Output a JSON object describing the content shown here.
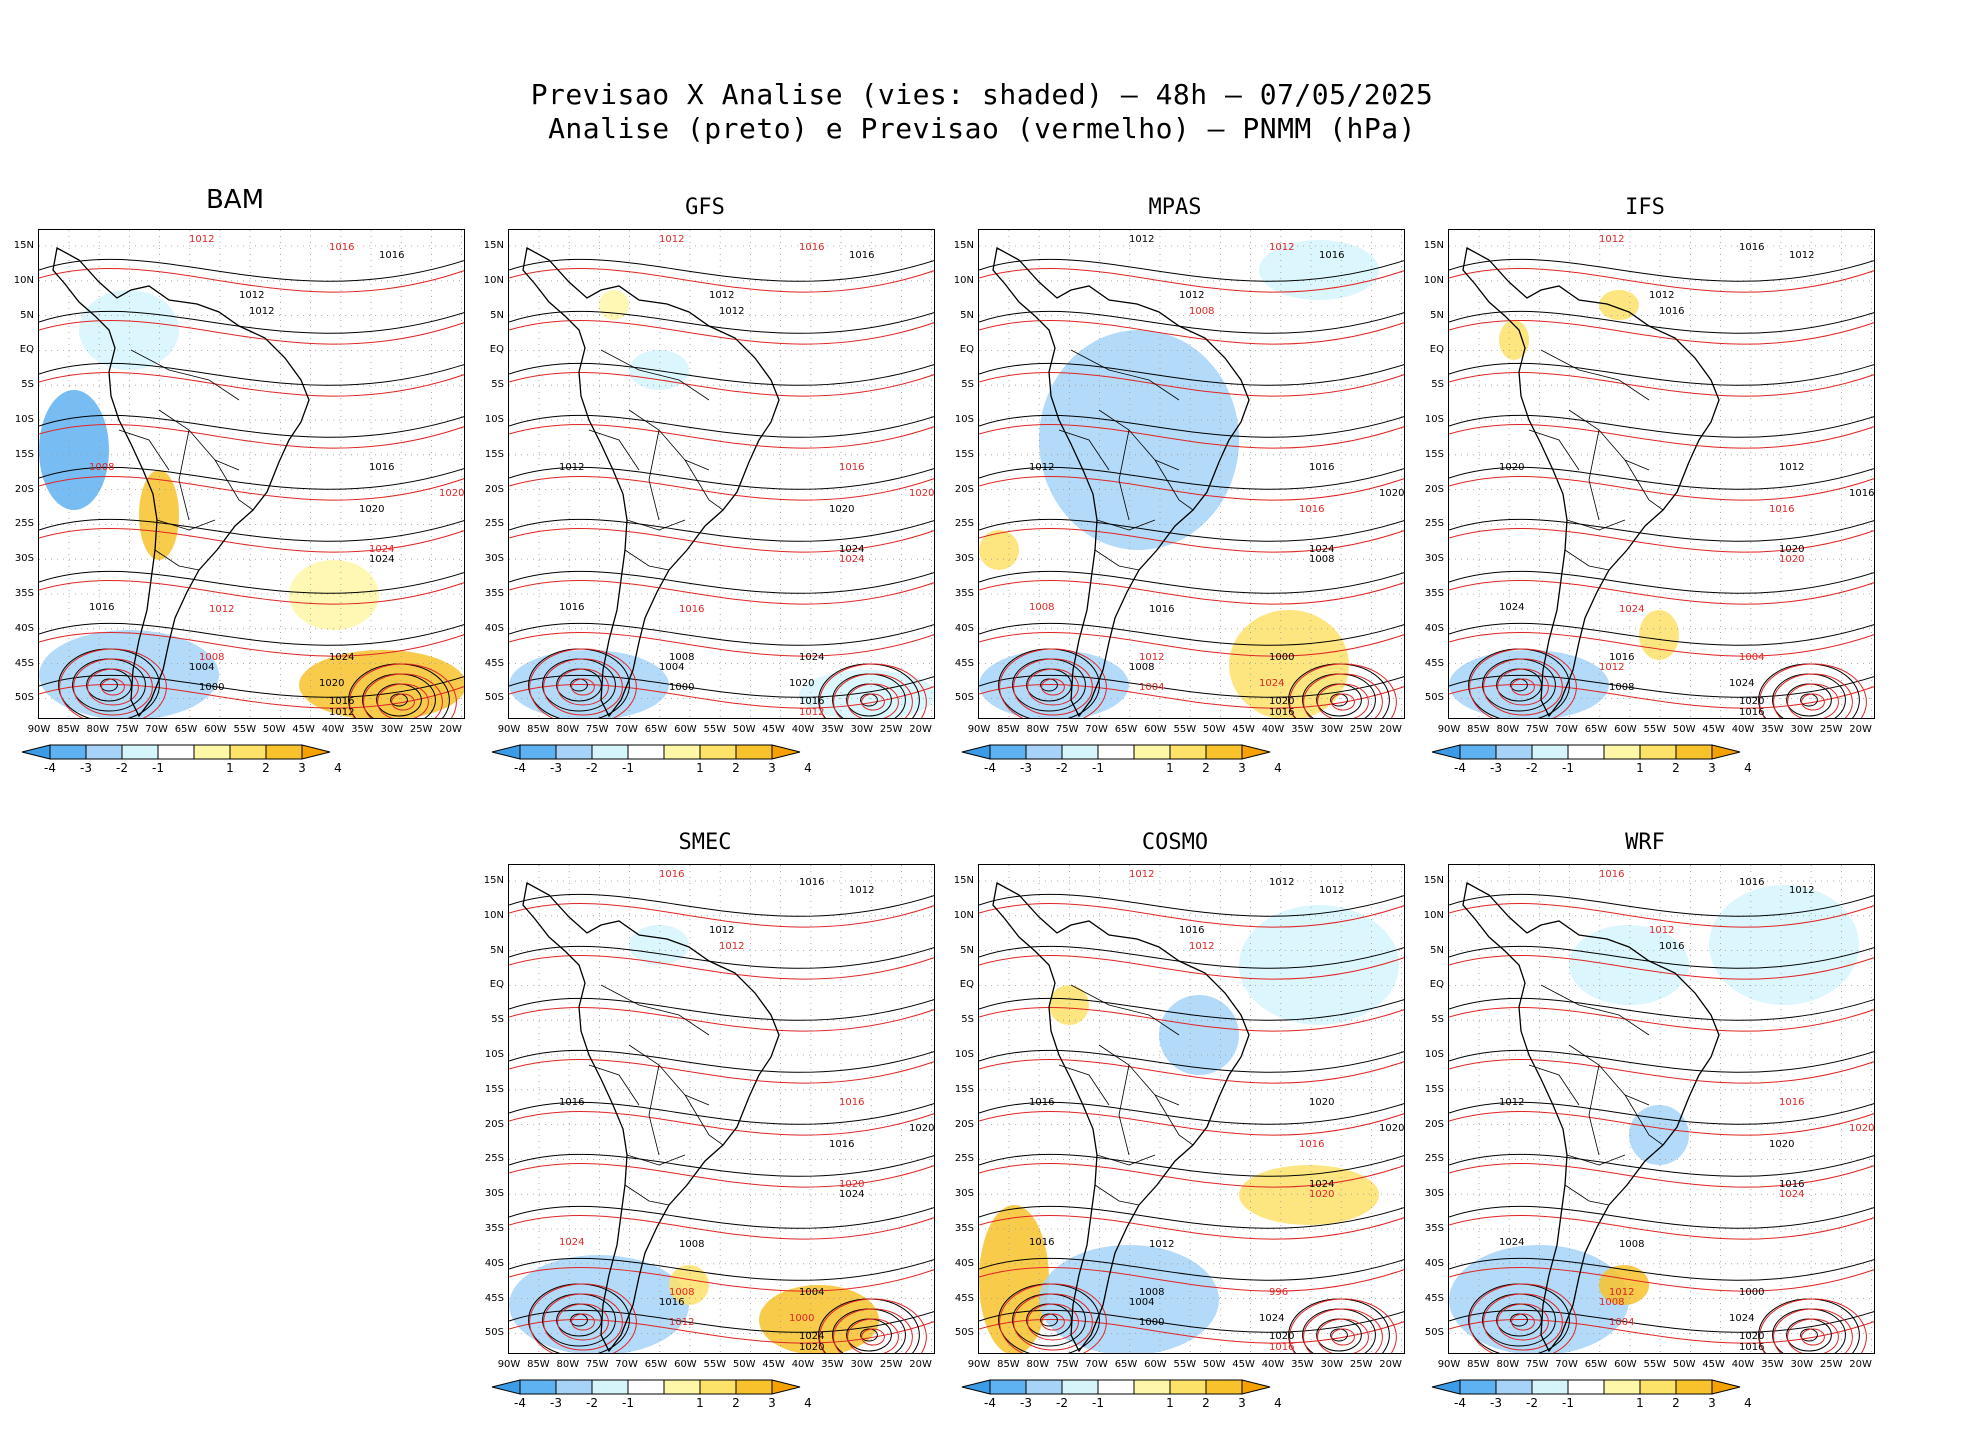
{
  "title_line1": "Previsao X Analise (vies: shaded) – 48h – 07/05/2025",
  "title_line2": "Analise (preto) e Previsao (vermelho) – PNMM (hPa)",
  "lat_labels": [
    "15N",
    "10N",
    "5N",
    "EQ",
    "5S",
    "10S",
    "15S",
    "20S",
    "25S",
    "30S",
    "35S",
    "40S",
    "45S",
    "50S"
  ],
  "lon_labels": [
    "90W",
    "85W",
    "80W",
    "75W",
    "70W",
    "65W",
    "60W",
    "55W",
    "50W",
    "45W",
    "40W",
    "35W",
    "30W",
    "25W",
    "20W"
  ],
  "colorbar_labels": [
    "-4",
    "-3",
    "-2",
    "-1",
    "1",
    "2",
    "3",
    "4"
  ],
  "colorbar_colors": [
    "#3c9be6",
    "#5fb2f2",
    "#a6d3f7",
    "#d5f5fb",
    "#ffffff",
    "#fff7a8",
    "#fde26a",
    "#f7c22c",
    "#f5a200"
  ],
  "analysis_color": "#000000",
  "forecast_color": "#e02424",
  "panels": [
    {
      "name": "BAM",
      "contours": [
        {
          "t": "1012",
          "c": "r"
        },
        {
          "t": "1016",
          "c": "r"
        },
        {
          "t": "1016",
          "c": "k"
        },
        {
          "t": "1012",
          "c": "k"
        },
        {
          "t": "1012",
          "c": "k"
        },
        {
          "t": "1008",
          "c": "r"
        },
        {
          "t": "1016",
          "c": "k"
        },
        {
          "t": "1020",
          "c": "k"
        },
        {
          "t": "1020",
          "c": "r"
        },
        {
          "t": "1024",
          "c": "r"
        },
        {
          "t": "1024",
          "c": "k"
        },
        {
          "t": "1016",
          "c": "k"
        },
        {
          "t": "1012",
          "c": "r"
        },
        {
          "t": "1008",
          "c": "r"
        },
        {
          "t": "1004",
          "c": "k"
        },
        {
          "t": "1000",
          "c": "k"
        },
        {
          "t": "1024",
          "c": "k"
        },
        {
          "t": "1020",
          "c": "k"
        },
        {
          "t": "1016",
          "c": "k"
        },
        {
          "t": "1012",
          "c": "k"
        }
      ]
    },
    {
      "name": "GFS",
      "contours": [
        {
          "t": "1012",
          "c": "r"
        },
        {
          "t": "1016",
          "c": "r"
        },
        {
          "t": "1016",
          "c": "k"
        },
        {
          "t": "1012",
          "c": "k"
        },
        {
          "t": "1012",
          "c": "k"
        },
        {
          "t": "1012",
          "c": "k"
        },
        {
          "t": "1016",
          "c": "r"
        },
        {
          "t": "1020",
          "c": "k"
        },
        {
          "t": "1020",
          "c": "r"
        },
        {
          "t": "1024",
          "c": "k"
        },
        {
          "t": "1024",
          "c": "r"
        },
        {
          "t": "1016",
          "c": "k"
        },
        {
          "t": "1016",
          "c": "r"
        },
        {
          "t": "1008",
          "c": "k"
        },
        {
          "t": "1004",
          "c": "k"
        },
        {
          "t": "1000",
          "c": "k"
        },
        {
          "t": "1024",
          "c": "k"
        },
        {
          "t": "1020",
          "c": "k"
        },
        {
          "t": "1016",
          "c": "k"
        },
        {
          "t": "1012",
          "c": "r"
        }
      ]
    },
    {
      "name": "MPAS",
      "contours": [
        {
          "t": "1012",
          "c": "k"
        },
        {
          "t": "1012",
          "c": "r"
        },
        {
          "t": "1016",
          "c": "k"
        },
        {
          "t": "1012",
          "c": "k"
        },
        {
          "t": "1008",
          "c": "r"
        },
        {
          "t": "1012",
          "c": "k"
        },
        {
          "t": "1016",
          "c": "k"
        },
        {
          "t": "1016",
          "c": "r"
        },
        {
          "t": "1020",
          "c": "k"
        },
        {
          "t": "1024",
          "c": "k"
        },
        {
          "t": "1008",
          "c": "k"
        },
        {
          "t": "1008",
          "c": "r"
        },
        {
          "t": "1016",
          "c": "k"
        },
        {
          "t": "1012",
          "c": "r"
        },
        {
          "t": "1008",
          "c": "k"
        },
        {
          "t": "1004",
          "c": "r"
        },
        {
          "t": "1000",
          "c": "k"
        },
        {
          "t": "1024",
          "c": "r"
        },
        {
          "t": "1020",
          "c": "k"
        },
        {
          "t": "1016",
          "c": "k"
        }
      ]
    },
    {
      "name": "IFS",
      "contours": [
        {
          "t": "1012",
          "c": "r"
        },
        {
          "t": "1016",
          "c": "k"
        },
        {
          "t": "1012",
          "c": "k"
        },
        {
          "t": "1012",
          "c": "k"
        },
        {
          "t": "1016",
          "c": "k"
        },
        {
          "t": "1020",
          "c": "k"
        },
        {
          "t": "1012",
          "c": "k"
        },
        {
          "t": "1016",
          "c": "r"
        },
        {
          "t": "1016",
          "c": "k"
        },
        {
          "t": "1020",
          "c": "k"
        },
        {
          "t": "1020",
          "c": "r"
        },
        {
          "t": "1024",
          "c": "k"
        },
        {
          "t": "1024",
          "c": "r"
        },
        {
          "t": "1016",
          "c": "k"
        },
        {
          "t": "1012",
          "c": "r"
        },
        {
          "t": "1008",
          "c": "k"
        },
        {
          "t": "1004",
          "c": "r"
        },
        {
          "t": "1024",
          "c": "k"
        },
        {
          "t": "1020",
          "c": "k"
        },
        {
          "t": "1016",
          "c": "k"
        }
      ]
    },
    {
      "name": "SMEC",
      "contours": [
        {
          "t": "1016",
          "c": "r"
        },
        {
          "t": "1016",
          "c": "k"
        },
        {
          "t": "1012",
          "c": "k"
        },
        {
          "t": "1012",
          "c": "k"
        },
        {
          "t": "1012",
          "c": "r"
        },
        {
          "t": "1016",
          "c": "k"
        },
        {
          "t": "1016",
          "c": "r"
        },
        {
          "t": "1016",
          "c": "k"
        },
        {
          "t": "1020",
          "c": "k"
        },
        {
          "t": "1020",
          "c": "r"
        },
        {
          "t": "1024",
          "c": "k"
        },
        {
          "t": "1024",
          "c": "r"
        },
        {
          "t": "1008",
          "c": "k"
        },
        {
          "t": "1008",
          "c": "r"
        },
        {
          "t": "1016",
          "c": "k"
        },
        {
          "t": "1012",
          "c": "r"
        },
        {
          "t": "1004",
          "c": "k"
        },
        {
          "t": "1000",
          "c": "r"
        },
        {
          "t": "1024",
          "c": "k"
        },
        {
          "t": "1020",
          "c": "k"
        }
      ]
    },
    {
      "name": "COSMO",
      "contours": [
        {
          "t": "1012",
          "c": "r"
        },
        {
          "t": "1012",
          "c": "k"
        },
        {
          "t": "1012",
          "c": "k"
        },
        {
          "t": "1016",
          "c": "k"
        },
        {
          "t": "1012",
          "c": "r"
        },
        {
          "t": "1016",
          "c": "k"
        },
        {
          "t": "1020",
          "c": "k"
        },
        {
          "t": "1016",
          "c": "r"
        },
        {
          "t": "1020",
          "c": "k"
        },
        {
          "t": "1024",
          "c": "k"
        },
        {
          "t": "1020",
          "c": "r"
        },
        {
          "t": "1016",
          "c": "k"
        },
        {
          "t": "1012",
          "c": "k"
        },
        {
          "t": "1008",
          "c": "k"
        },
        {
          "t": "1004",
          "c": "k"
        },
        {
          "t": "1000",
          "c": "k"
        },
        {
          "t": "996",
          "c": "r"
        },
        {
          "t": "1024",
          "c": "k"
        },
        {
          "t": "1020",
          "c": "k"
        },
        {
          "t": "1016",
          "c": "r"
        }
      ]
    },
    {
      "name": "WRF",
      "contours": [
        {
          "t": "1016",
          "c": "r"
        },
        {
          "t": "1016",
          "c": "k"
        },
        {
          "t": "1012",
          "c": "k"
        },
        {
          "t": "1012",
          "c": "r"
        },
        {
          "t": "1016",
          "c": "k"
        },
        {
          "t": "1012",
          "c": "k"
        },
        {
          "t": "1016",
          "c": "r"
        },
        {
          "t": "1020",
          "c": "k"
        },
        {
          "t": "1020",
          "c": "r"
        },
        {
          "t": "1016",
          "c": "k"
        },
        {
          "t": "1024",
          "c": "r"
        },
        {
          "t": "1024",
          "c": "k"
        },
        {
          "t": "1008",
          "c": "k"
        },
        {
          "t": "1012",
          "c": "r"
        },
        {
          "t": "1008",
          "c": "r"
        },
        {
          "t": "1004",
          "c": "r"
        },
        {
          "t": "1000",
          "c": "k"
        },
        {
          "t": "1024",
          "c": "k"
        },
        {
          "t": "1020",
          "c": "k"
        },
        {
          "t": "1016",
          "c": "k"
        }
      ]
    }
  ]
}
